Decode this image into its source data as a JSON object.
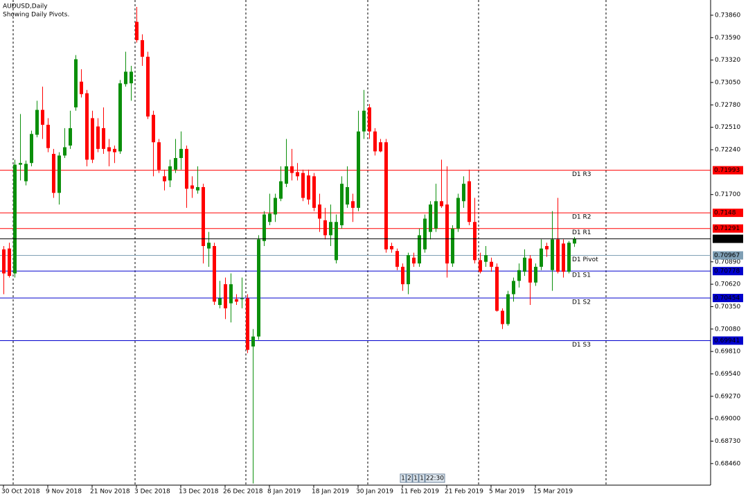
{
  "chart_data": {
    "type": "candlestick",
    "title": "AUDUSD,Daily",
    "subtitle": "Showing Daily Pivots.",
    "categories": [
      "30 Oct 2018",
      null,
      null,
      null,
      null,
      null,
      null,
      null,
      "9 Nov 2018",
      null,
      null,
      null,
      null,
      null,
      null,
      null,
      "21 Nov 2018",
      null,
      null,
      null,
      null,
      null,
      null,
      null,
      "3 Dec 2018",
      null,
      null,
      null,
      null,
      null,
      null,
      null,
      "13 Dec 2018",
      null,
      null,
      null,
      null,
      null,
      null,
      null,
      "26 Dec 2018",
      null,
      null,
      null,
      null,
      null,
      null,
      null,
      "8 Jan 2019",
      null,
      null,
      null,
      null,
      null,
      null,
      null,
      "18 Jan 2019",
      null,
      null,
      null,
      null,
      null,
      null,
      null,
      "30 Jan 2019",
      null,
      null,
      null,
      null,
      null,
      null,
      null,
      "11 Feb 2019",
      null,
      null,
      null,
      null,
      null,
      null,
      null,
      "21 Feb 2019",
      null,
      null,
      null,
      null,
      null,
      null,
      null,
      "5 Mar 2019",
      null,
      null,
      null,
      null,
      null,
      null,
      null,
      "15 Mar 2019",
      null,
      null,
      null,
      null,
      null,
      null,
      null
    ],
    "open": [
      0.7104,
      0.7105,
      0.7075,
      0.7206,
      0.7186,
      0.7208,
      0.7242,
      0.7272,
      0.7254,
      0.7219,
      0.7172,
      0.7217,
      0.7229,
      0.7275,
      0.7306,
      0.7292,
      0.7262,
      0.7252,
      0.725,
      0.7227,
      0.7225,
      0.7222,
      0.7303,
      0.7304,
      0.7378,
      0.7356,
      0.7336,
      0.7266,
      0.7233,
      0.7192,
      0.7187,
      0.72,
      0.7214,
      0.7225,
      0.7181,
      0.7175,
      0.7179,
      0.7105,
      0.7108,
      0.7037,
      0.7062,
      0.7039,
      0.7044,
      0.7044,
      0.7045,
      0.6987,
      0.6999,
      0.7114,
      0.7137,
      0.7146,
      0.7165,
      0.7183,
      0.7204,
      0.7197,
      0.7196,
      0.7193,
      0.7192,
      0.7158,
      0.7139,
      0.7121,
      0.7091,
      0.7133,
      0.7158,
      0.7162,
      0.7154,
      0.7246,
      0.7275,
      0.7246,
      0.7233,
      0.7233,
      0.7108,
      0.7102,
      0.7083,
      0.7062,
      0.7094,
      0.7087,
      0.7104,
      0.7125,
      0.7129,
      0.7162,
      0.7158,
      0.7087,
      0.7129,
      0.7162,
      0.7186,
      0.7137,
      0.7091,
      0.7089,
      0.7089,
      0.7083,
      0.703,
      0.7014,
      0.705,
      0.7066,
      0.7077,
      0.7093,
      0.7064,
      0.7083,
      0.7108,
      0.7079,
      0.7116,
      0.7111,
      0.7077,
      0.7111
    ],
    "high": [
      0.7108,
      0.7112,
      0.7212,
      0.7267,
      0.7211,
      0.7247,
      0.7283,
      0.73,
      0.7262,
      0.7225,
      0.7221,
      0.725,
      0.7271,
      0.7338,
      0.7321,
      0.7296,
      0.7271,
      0.7262,
      0.7275,
      0.7237,
      0.7229,
      0.7308,
      0.7342,
      0.7325,
      0.7396,
      0.7363,
      0.7342,
      0.7271,
      0.7237,
      0.72,
      0.7212,
      0.7237,
      0.7246,
      0.7229,
      0.7192,
      0.7204,
      0.7183,
      0.7125,
      0.7112,
      0.7066,
      0.707,
      0.7075,
      0.705,
      0.707,
      0.705,
      0.7008,
      0.7121,
      0.715,
      0.7171,
      0.7171,
      0.7204,
      0.7237,
      0.7225,
      0.7208,
      0.72,
      0.72,
      0.7196,
      0.7171,
      0.7154,
      0.7158,
      0.7146,
      0.7192,
      0.7204,
      0.7171,
      0.7271,
      0.7296,
      0.7279,
      0.725,
      0.7237,
      0.7237,
      0.7112,
      0.7105,
      0.7087,
      0.71,
      0.71,
      0.7129,
      0.7146,
      0.7162,
      0.7183,
      0.7212,
      0.7204,
      0.7133,
      0.7171,
      0.7192,
      0.72,
      0.7166,
      0.71,
      0.7108,
      0.7094,
      0.7087,
      0.7033,
      0.7054,
      0.707,
      0.7087,
      0.7104,
      0.7097,
      0.7087,
      0.7116,
      0.7112,
      0.715,
      0.7166,
      0.7116,
      0.7114,
      0.7119
    ],
    "low": [
      0.705,
      0.707,
      0.707,
      0.7187,
      0.7181,
      0.7204,
      0.7239,
      0.7237,
      0.7221,
      0.7166,
      0.7158,
      0.7214,
      0.7225,
      0.7271,
      0.7287,
      0.7204,
      0.7208,
      0.7221,
      0.7219,
      0.7204,
      0.7208,
      0.7219,
      0.73,
      0.7283,
      0.7353,
      0.7325,
      0.7261,
      0.7192,
      0.7196,
      0.7175,
      0.7179,
      0.7196,
      0.72,
      0.7154,
      0.7166,
      0.7171,
      0.7087,
      0.7083,
      0.7037,
      0.7033,
      0.702,
      0.7016,
      0.7037,
      0.7033,
      0.6979,
      0.6822,
      0.6995,
      0.7108,
      0.7133,
      0.7137,
      0.7162,
      0.7179,
      0.7187,
      0.7187,
      0.7162,
      0.7158,
      0.715,
      0.7125,
      0.7116,
      0.7108,
      0.7087,
      0.7129,
      0.7154,
      0.7137,
      0.715,
      0.7237,
      0.7237,
      0.7217,
      0.7221,
      0.71,
      0.71,
      0.7079,
      0.7054,
      0.705,
      0.7083,
      0.7083,
      0.71,
      0.7116,
      0.7125,
      0.7154,
      0.707,
      0.7083,
      0.7125,
      0.7154,
      0.7133,
      0.7087,
      0.7075,
      0.7083,
      0.7077,
      0.7029,
      0.7008,
      0.7012,
      0.7041,
      0.7058,
      0.7072,
      0.7037,
      0.706,
      0.7079,
      0.7095,
      0.7054,
      0.7075,
      0.707,
      0.7075,
      0.7107
    ],
    "close": [
      0.7075,
      0.7072,
      0.7206,
      0.7208,
      0.7207,
      0.7243,
      0.7272,
      0.7254,
      0.7226,
      0.7172,
      0.7217,
      0.7227,
      0.725,
      0.7333,
      0.7291,
      0.7212,
      0.7212,
      0.7225,
      0.7225,
      0.7222,
      0.7221,
      0.7304,
      0.7318,
      0.7318,
      0.7356,
      0.7336,
      0.7264,
      0.7233,
      0.72,
      0.7186,
      0.7204,
      0.7214,
      0.7225,
      0.7177,
      0.7177,
      0.7179,
      0.7108,
      0.7112,
      0.7041,
      0.7045,
      0.7033,
      0.7062,
      0.7041,
      0.7045,
      0.6983,
      0.6999,
      0.7116,
      0.7146,
      0.7147,
      0.7166,
      0.7186,
      0.7204,
      0.7196,
      0.7192,
      0.7166,
      0.7164,
      0.7154,
      0.7141,
      0.7121,
      0.7137,
      0.7137,
      0.7183,
      0.7179,
      0.7154,
      0.7246,
      0.7271,
      0.7246,
      0.7222,
      0.7222,
      0.7104,
      0.7104,
      0.7083,
      0.7062,
      0.7097,
      0.7087,
      0.7121,
      0.7141,
      0.7158,
      0.7162,
      0.7156,
      0.7087,
      0.7129,
      0.7166,
      0.7183,
      0.7137,
      0.7091,
      0.7077,
      0.7097,
      0.7083,
      0.703,
      0.7014,
      0.705,
      0.7066,
      0.7079,
      0.7094,
      0.7064,
      0.7083,
      0.7105,
      0.7104,
      0.7116,
      0.7077,
      0.7077,
      0.7112,
      0.71167
    ],
    "up_color": "#0b8f0b",
    "down_color": "#ff0000",
    "ylim": [
      0.682,
      0.7401
    ],
    "yticks": [
      {
        "value": 0.7386,
        "label": "0.73860"
      },
      {
        "value": 0.7359,
        "label": "0.73590"
      },
      {
        "value": 0.7332,
        "label": "0.73320"
      },
      {
        "value": 0.7305,
        "label": "0.73050"
      },
      {
        "value": 0.7278,
        "label": "0.72780"
      },
      {
        "value": 0.7251,
        "label": "0.72510"
      },
      {
        "value": 0.7224,
        "label": "0.72240"
      },
      {
        "value": 0.717,
        "label": "0.71700"
      },
      {
        "value": 0.7089,
        "label": "0.70890"
      },
      {
        "value": 0.7062,
        "label": "0.70620"
      },
      {
        "value": 0.7035,
        "label": "0.70350"
      },
      {
        "value": 0.7008,
        "label": "0.70080"
      },
      {
        "value": 0.6981,
        "label": "0.69810"
      },
      {
        "value": 0.6954,
        "label": "0.69540"
      },
      {
        "value": 0.6927,
        "label": "0.69270"
      },
      {
        "value": 0.69,
        "label": "0.69000"
      },
      {
        "value": 0.6873,
        "label": "0.68730"
      },
      {
        "value": 0.6846,
        "label": "0.68460"
      }
    ],
    "levels": [
      {
        "name": "D1 R3",
        "value": 0.71993,
        "color": "#ff0000"
      },
      {
        "name": "D1 R2",
        "value": 0.7148,
        "color": "#ff0000"
      },
      {
        "name": "D1 R1",
        "value": 0.71291,
        "color": "#ff0000"
      },
      {
        "name": "D1 Pivot",
        "value": 0.70967,
        "color": "#7f9fb5"
      },
      {
        "name": "D1 S1",
        "value": 0.70778,
        "color": "#0000cd"
      },
      {
        "name": "D1 S2",
        "value": 0.70454,
        "color": "#0000cd"
      },
      {
        "name": "D1 S3",
        "value": 0.69941,
        "color": "#0000cd"
      }
    ],
    "last_price": 0.71167,
    "timer": [
      "1",
      "2",
      "1",
      "1",
      "22:30"
    ]
  }
}
